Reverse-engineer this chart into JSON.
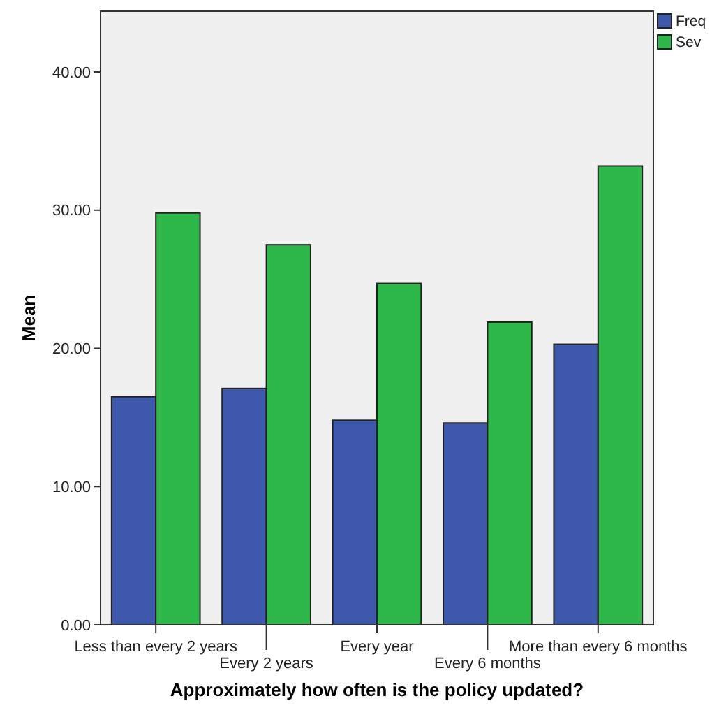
{
  "chart_data": {
    "type": "bar",
    "xlabel": "Approximately how often is the policy updated?",
    "ylabel": "Mean",
    "categories": [
      "Less than every 2 years",
      "Every 2 years",
      "Every year",
      "Every 6 months",
      "More than every 6 months"
    ],
    "series": [
      {
        "name": "Freq",
        "color": "#3e58ac",
        "values": [
          16.5,
          17.1,
          14.8,
          14.6,
          20.3
        ]
      },
      {
        "name": "Sev",
        "color": "#2eb84a",
        "values": [
          29.8,
          27.5,
          24.7,
          21.9,
          33.2
        ]
      }
    ],
    "ylim": [
      0,
      44.4
    ],
    "yticks": [
      {
        "value": 0,
        "label": "0.00"
      },
      {
        "value": 10,
        "label": "10.00"
      },
      {
        "value": 20,
        "label": "20.00"
      },
      {
        "value": 30,
        "label": "30.00"
      },
      {
        "value": 40,
        "label": "40.00"
      }
    ],
    "grid": false,
    "legend": "top right"
  }
}
